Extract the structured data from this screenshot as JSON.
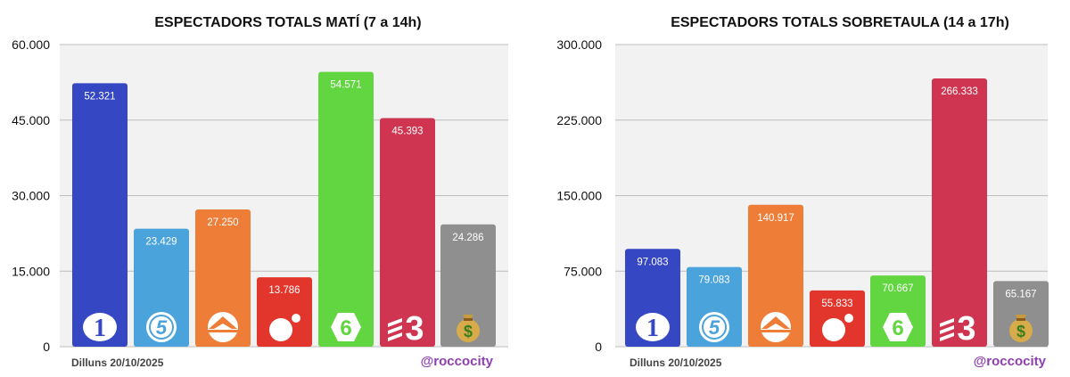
{
  "chart_data": [
    {
      "type": "bar",
      "title": "ESPECTADORS TOTALS MATÍ (7 a 14h)",
      "ylim": [
        0,
        60000
      ],
      "yticks": [
        "0",
        "15.000",
        "30.000",
        "45.000",
        "60.000"
      ],
      "grid": true,
      "categories": [
        "1",
        "5",
        "A3",
        "Cuatro",
        "6",
        "3",
        "$"
      ],
      "values": [
        52321,
        23429,
        27250,
        13786,
        54571,
        45393,
        24286
      ],
      "value_labels": [
        "52.321",
        "23.429",
        "27.250",
        "13.786",
        "54.571",
        "45.393",
        "24.286"
      ],
      "footer_left": "Dilluns 20/10/2025",
      "footer_right": "@roccocity"
    },
    {
      "type": "bar",
      "title": "ESPECTADORS TOTALS SOBRETAULA (14 a 17h)",
      "ylim": [
        0,
        300000
      ],
      "yticks": [
        "0",
        "75.000",
        "150.000",
        "225.000",
        "300.000"
      ],
      "grid": true,
      "categories": [
        "1",
        "5",
        "A3",
        "Cuatro",
        "6",
        "3",
        "$"
      ],
      "values": [
        97083,
        79083,
        140917,
        55833,
        70667,
        266333,
        65167
      ],
      "value_labels": [
        "97.083",
        "79.083",
        "140.917",
        "55.833",
        "70.667",
        "266.333",
        "65.167"
      ],
      "footer_left": "Dilluns 20/10/2025",
      "footer_right": "@roccocity"
    }
  ],
  "colors": {
    "bars": [
      "#3547c2",
      "#4aa3db",
      "#ee7d37",
      "#e2352c",
      "#62d640",
      "#cf3550",
      "#8f8f8f"
    ],
    "plot_background": "#f2f2f2",
    "gridline": "#bdbdbd"
  },
  "icons": [
    "la1-logo-icon",
    "telecinco-logo-icon",
    "antena3-logo-icon",
    "cuatro-logo-icon",
    "lasexta-logo-icon",
    "tv3-logo-icon",
    "money-bag-icon"
  ]
}
